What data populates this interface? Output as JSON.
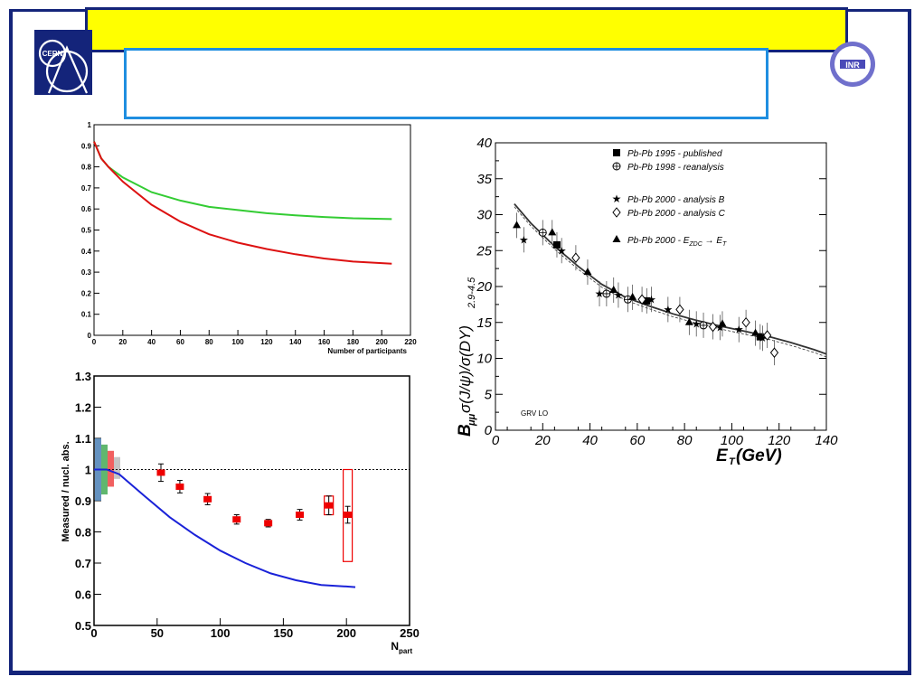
{
  "slide": {
    "title": "",
    "subtitle": "",
    "page_number": "",
    "colors": {
      "frame": "#14247a",
      "title_bg": "#ffff00",
      "subtitle_border": "#1f8ee0"
    },
    "logos": {
      "left": "CERN",
      "right": "INR"
    }
  },
  "chart_data": [
    {
      "type": "line",
      "xlabel": "Number of participants",
      "ylabel": "",
      "xlim": [
        0,
        220
      ],
      "ylim": [
        0,
        1
      ],
      "x_ticks": [
        "0",
        "20",
        "40",
        "60",
        "80",
        "100",
        "120",
        "140",
        "160",
        "180",
        "200",
        "220"
      ],
      "y_ticks": [
        "0",
        "0.1",
        "0.2",
        "0.3",
        "0.4",
        "0.5",
        "0.6",
        "0.7",
        "0.8",
        "0.9",
        "1"
      ],
      "grid": false,
      "series": [
        {
          "color": "#33cc33",
          "x": [
            0,
            5,
            10,
            20,
            40,
            60,
            80,
            100,
            120,
            140,
            160,
            180,
            207
          ],
          "y": [
            0.92,
            0.84,
            0.8,
            0.75,
            0.68,
            0.64,
            0.61,
            0.595,
            0.58,
            0.57,
            0.562,
            0.556,
            0.552
          ]
        },
        {
          "color": "#dd1111",
          "x": [
            0,
            5,
            10,
            20,
            40,
            60,
            80,
            100,
            120,
            140,
            160,
            180,
            207
          ],
          "y": [
            0.92,
            0.84,
            0.8,
            0.73,
            0.62,
            0.54,
            0.48,
            0.44,
            0.41,
            0.385,
            0.365,
            0.35,
            0.34
          ]
        }
      ]
    },
    {
      "type": "scatter",
      "xlabel": "N",
      "xlabel_sub": "part",
      "ylabel": "Measured / nucl. abs.",
      "xlim": [
        0,
        250
      ],
      "ylim": [
        0.5,
        1.3
      ],
      "x_ticks": [
        "0",
        "50",
        "100",
        "150",
        "200",
        "250"
      ],
      "y_ticks": [
        "0.5",
        "0.6",
        "0.7",
        "0.8",
        "0.9",
        "1",
        "1.1",
        "1.2",
        "1.3"
      ],
      "reference_line": 1,
      "grid": false,
      "series": [
        {
          "color": "#ee0000",
          "x": [
            53,
            68,
            90,
            113,
            138,
            163,
            186,
            201
          ],
          "y": [
            0.99,
            0.945,
            0.905,
            0.84,
            0.828,
            0.855,
            0.885,
            0.855
          ],
          "err": [
            0.028,
            0.02,
            0.018,
            0.015,
            0.012,
            0.017,
            0.03,
            0.027
          ]
        },
        {
          "color": "#1a22d8",
          "x": [
            0,
            10,
            20,
            40,
            60,
            80,
            100,
            120,
            140,
            160,
            180,
            200,
            207
          ],
          "y": [
            1.0,
            1.0,
            0.985,
            0.915,
            0.847,
            0.79,
            0.74,
            0.7,
            0.667,
            0.645,
            0.63,
            0.625,
            0.623
          ]
        }
      ],
      "systematic_boxes": [
        {
          "x": 186,
          "y_low": 0.855,
          "y_high": 0.915
        },
        {
          "x": 201,
          "y_low": 0.705,
          "y_high": 1.0
        }
      ],
      "bands": [
        {
          "color": "#4a7fb5",
          "y_low": 0.9,
          "y_high": 1.1
        },
        {
          "color": "#44aa55",
          "y_low": 0.92,
          "y_high": 1.08
        },
        {
          "color": "#ee4444",
          "y_low": 0.945,
          "y_high": 1.06
        },
        {
          "color": "#bbbbbb",
          "y_low": 0.97,
          "y_high": 1.04
        }
      ]
    },
    {
      "type": "scatter",
      "ylabel_main": "B",
      "ylabel_sub": "μμ",
      "ylabel_rest": "σ(J/ψ)/σ(DY)",
      "ylabel_range": "2.9-4.5",
      "xlabel_main": "E",
      "xlabel_sub": "T",
      "xlabel_rest": " (GeV)",
      "xlim": [
        0,
        140
      ],
      "ylim": [
        0,
        40
      ],
      "x_ticks": [
        "0",
        "20",
        "40",
        "60",
        "80",
        "100",
        "120",
        "140"
      ],
      "y_ticks": [
        "0",
        "5",
        "10",
        "15",
        "20",
        "25",
        "30",
        "35",
        "40"
      ],
      "annotation": "GRV LO",
      "legend": [
        {
          "marker": "filled-square",
          "text": "Pb-Pb 1995 - published"
        },
        {
          "marker": "open-cross-circle",
          "text": "Pb-Pb 1998 - reanalysis"
        },
        {
          "marker": "star",
          "text": "Pb-Pb 2000  - analysis B"
        },
        {
          "marker": "open-diamond",
          "text": "Pb-Pb 2000  - analysis C"
        },
        {
          "marker": "filled-triangle",
          "text": "Pb-Pb 2000  - E",
          "sub": "ZDC",
          "after": " → E",
          "sub2": "T"
        }
      ],
      "series": [
        {
          "name": "Pb-Pb 1995 - published",
          "marker": "filled-square",
          "x": [
            26,
            64,
            112
          ],
          "y": [
            25.8,
            18,
            13
          ]
        },
        {
          "name": "Pb-Pb 1998 - reanalysis",
          "marker": "open-cross-circle",
          "x": [
            20,
            47,
            56,
            88
          ],
          "y": [
            27.5,
            19,
            18.2,
            14.6
          ]
        },
        {
          "name": "Pb-Pb 2000  - analysis B",
          "marker": "star",
          "x": [
            12,
            28,
            44,
            52,
            66,
            73,
            85,
            95,
            103,
            113
          ],
          "y": [
            26.5,
            25,
            19,
            18.8,
            18.2,
            16.8,
            14.8,
            14.3,
            14.0,
            12.8
          ]
        },
        {
          "name": "Pb-Pb 2000  - analysis C",
          "marker": "open-diamond",
          "x": [
            34,
            62,
            78,
            92,
            106,
            115,
            118
          ],
          "y": [
            24,
            18.2,
            16.8,
            14.4,
            15,
            13.2,
            10.8
          ]
        },
        {
          "name": "Pb-Pb 2000  - E_ZDC → E_T",
          "marker": "filled-triangle",
          "x": [
            9,
            24,
            39,
            50,
            58,
            82,
            96,
            110
          ],
          "y": [
            28.5,
            27.5,
            22,
            19.5,
            18.5,
            15,
            14.8,
            13.5
          ]
        },
        {
          "name": "GRV LO",
          "marker": "line",
          "x": [
            8,
            15,
            25,
            35,
            45,
            55,
            65,
            75,
            85,
            95,
            105,
            115,
            125,
            135,
            140
          ],
          "y": [
            31.5,
            28.8,
            25.6,
            22.8,
            20.3,
            18.5,
            17.3,
            16.2,
            15.3,
            14.5,
            13.8,
            13.1,
            12.2,
            11.2,
            10.6
          ]
        }
      ]
    }
  ]
}
